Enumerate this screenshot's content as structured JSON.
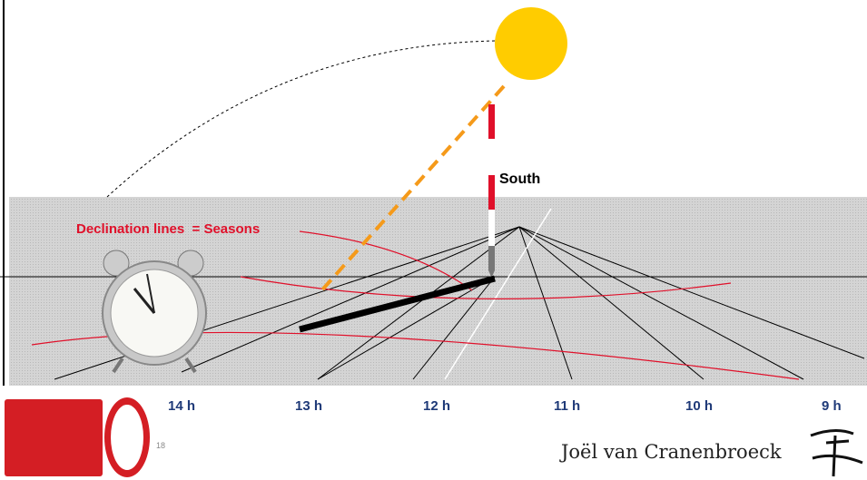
{
  "labels": {
    "south": "South",
    "declination": "Declination lines  = Seasons"
  },
  "hours": [
    "14 h",
    "13 h",
    "12 h",
    "11 h",
    "10 h",
    "9 h"
  ],
  "page_number": "18",
  "author": "Joël van Cranenbroeck"
}
